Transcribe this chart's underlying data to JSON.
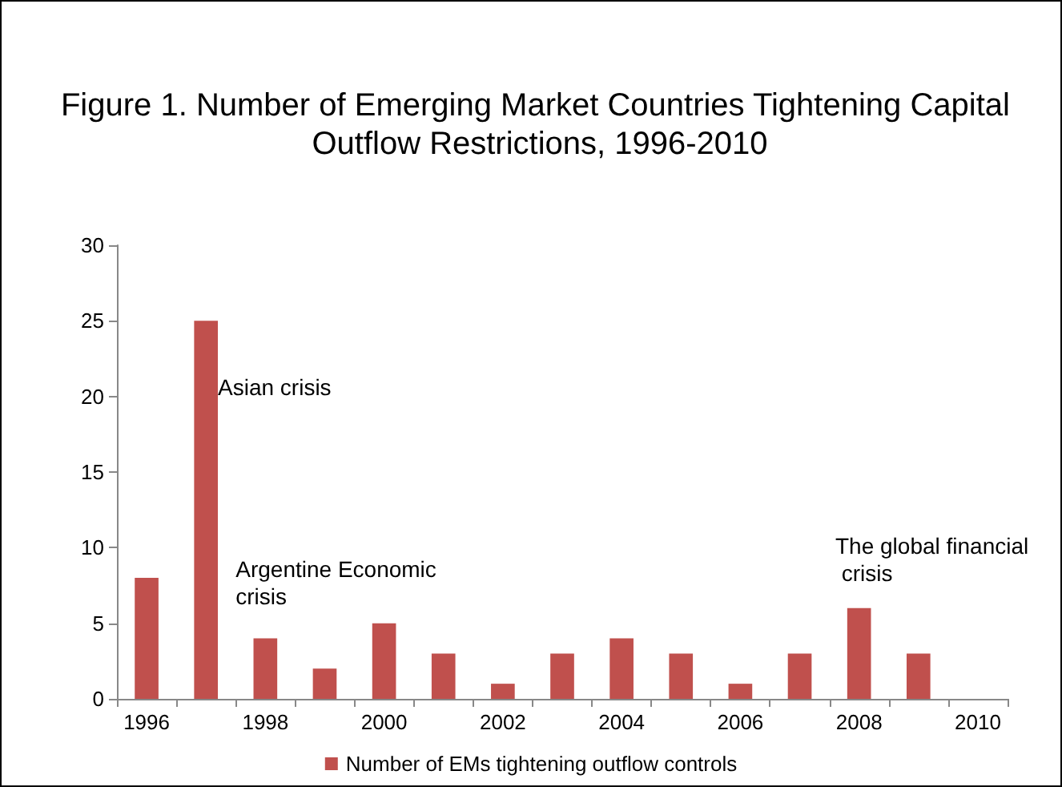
{
  "chart_data": {
    "type": "bar",
    "title": "Figure 1. Number of Emerging Market Countries Tightening Capital Outflow Restrictions, 1996-2010",
    "categories": [
      "1996",
      null,
      "1998",
      null,
      "2000",
      null,
      "2002",
      null,
      "2004",
      null,
      "2006",
      null,
      "2008",
      null,
      "2010"
    ],
    "series": [
      {
        "name": "Number of EMs tightening outflow controls",
        "color": "#c0504d",
        "values": [
          8,
          25,
          4,
          2,
          5,
          3,
          1,
          3,
          4,
          3,
          1,
          3,
          6,
          3,
          null
        ]
      }
    ],
    "ylim": [
      0,
      30
    ],
    "yticks": [
      0,
      5,
      10,
      15,
      20,
      25,
      30
    ],
    "grid": false,
    "legend": "bottom",
    "annotations": [
      "Asian crisis",
      "Argentine Economic crisis",
      "The global financial crisis"
    ]
  }
}
